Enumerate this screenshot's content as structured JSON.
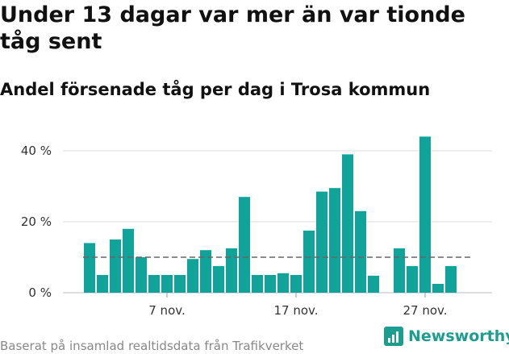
{
  "header": {
    "title": "Under 13 dagar var mer än var tionde tåg sent",
    "subtitle": "Andel försenade tåg per dag i Trosa kommun"
  },
  "footer": {
    "source": "Baserat på insamlad realtidsdata från Trafikverket",
    "brand": "Newsworthy"
  },
  "colors": {
    "bar": "#10a39a",
    "grid": "#dddddd",
    "reference_line": "#666666",
    "brand": "#1b9e8f"
  },
  "chart_data": {
    "type": "bar",
    "title": "",
    "xlabel": "",
    "ylabel": "",
    "ylim": [
      0,
      45
    ],
    "y_ticks": [
      0,
      20,
      40
    ],
    "y_tick_labels": [
      "0 %",
      "20 %",
      "40 %"
    ],
    "x_ticks": [
      {
        "day": 7,
        "label": "7 nov."
      },
      {
        "day": 17,
        "label": "17 nov."
      },
      {
        "day": 27,
        "label": "27 nov."
      }
    ],
    "x": [
      1,
      2,
      3,
      4,
      5,
      6,
      7,
      8,
      9,
      10,
      11,
      12,
      13,
      14,
      15,
      16,
      17,
      18,
      19,
      20,
      21,
      22,
      23,
      24,
      25,
      26,
      27,
      28,
      29,
      30
    ],
    "values": [
      14,
      5,
      15,
      18,
      10,
      5,
      5,
      5,
      9.5,
      12,
      7.5,
      12.5,
      27,
      5,
      5,
      5.5,
      5,
      17.5,
      28.5,
      29.5,
      39,
      23,
      4.8,
      null,
      12.5,
      7.5,
      44,
      2.5,
      7.5,
      null
    ],
    "reference_line": {
      "value": 10,
      "style": "dashed"
    },
    "grid": true,
    "legend": "none"
  }
}
